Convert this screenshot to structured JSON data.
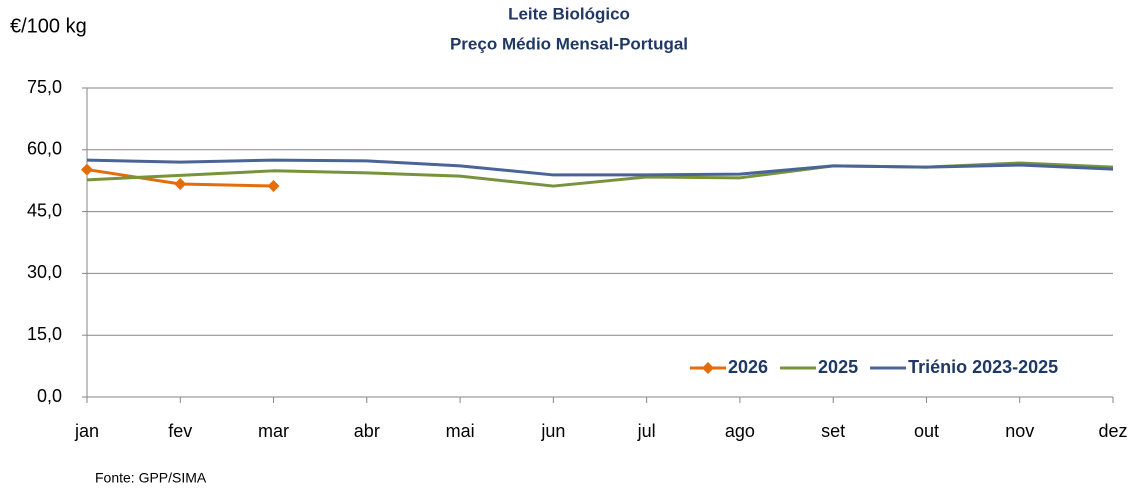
{
  "chart_data": {
    "type": "line",
    "title": "Leite Biológico",
    "subtitle": "Preço Médio Mensal-Portugal",
    "y_label": "€/100 kg",
    "source": "Fonte: GPP/SIMA",
    "categories": [
      "jan",
      "fev",
      "mar",
      "abr",
      "mai",
      "jun",
      "jul",
      "ago",
      "set",
      "out",
      "nov",
      "dez"
    ],
    "series": [
      {
        "name": "2026",
        "color": "#e46c0a",
        "marker": "diamond",
        "values": [
          55.2,
          51.7,
          51.2,
          null,
          null,
          null,
          null,
          null,
          null,
          null,
          null,
          null
        ]
      },
      {
        "name": "2025",
        "color": "#77933c",
        "values": [
          52.7,
          53.8,
          54.9,
          54.4,
          53.6,
          51.2,
          53.4,
          53.2,
          56.1,
          55.8,
          56.8,
          55.8
        ]
      },
      {
        "name": "Triénio 2023-2025",
        "color": "#4a6496",
        "values": [
          57.5,
          57.0,
          57.5,
          57.3,
          56.1,
          53.9,
          53.9,
          54.1,
          56.1,
          55.8,
          56.3,
          55.3
        ]
      }
    ],
    "ylim": [
      0,
      75
    ],
    "yticks": [
      {
        "value": 0,
        "label": "0,0"
      },
      {
        "value": 15,
        "label": "15,0"
      },
      {
        "value": 30,
        "label": "30,0"
      },
      {
        "value": 45,
        "label": "45,0"
      },
      {
        "value": 60,
        "label": "60,0"
      },
      {
        "value": 75,
        "label": "75,0"
      }
    ],
    "grid": true,
    "legend": "lower right"
  }
}
